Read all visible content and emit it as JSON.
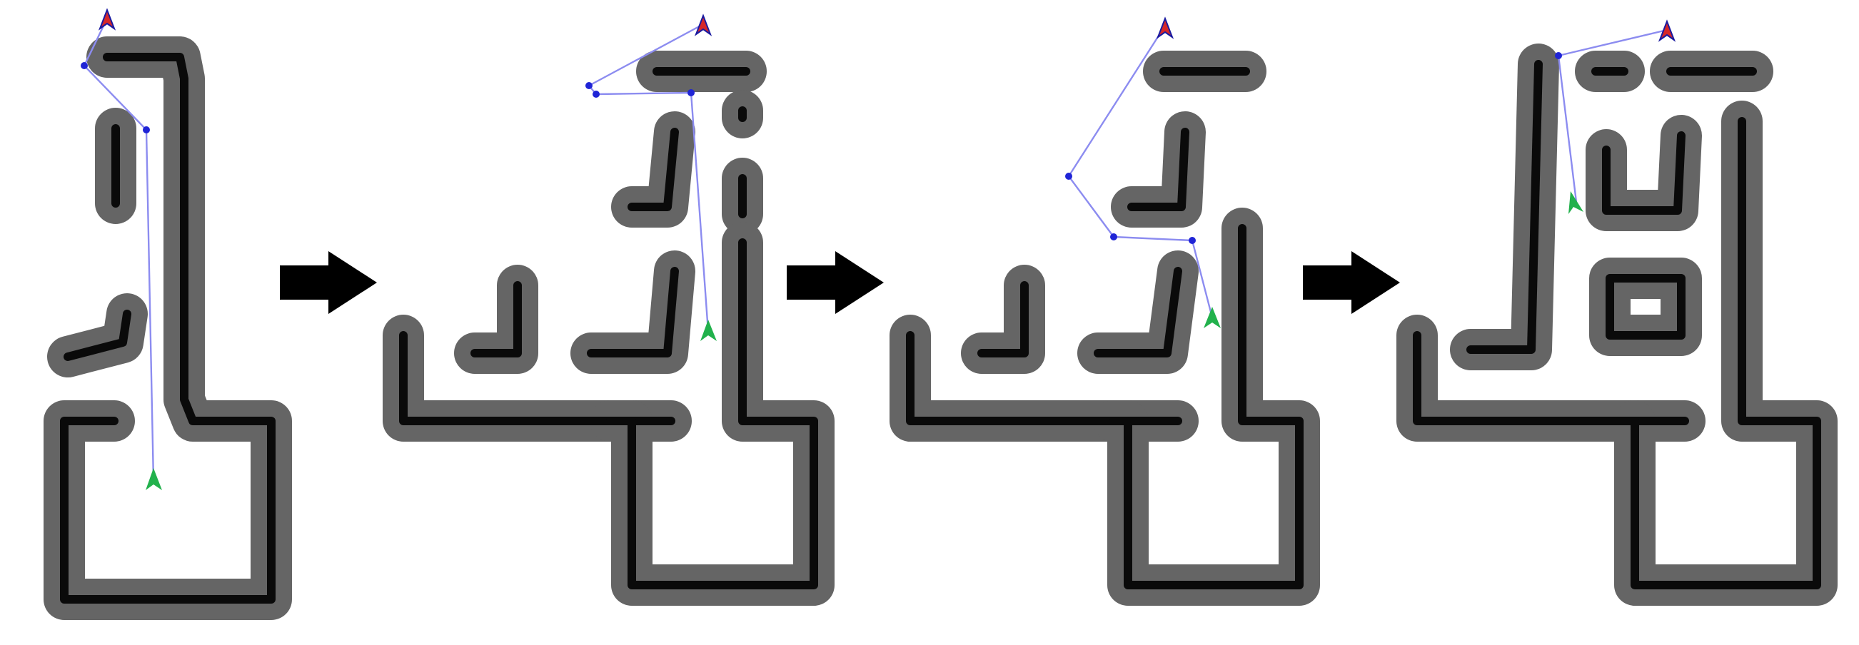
{
  "colors": {
    "background": "#ffffff",
    "inflated_obstacle": "#656565",
    "wall": "#0a0a0a",
    "planned_path": "#8c8cf0",
    "waypoint": "#1f24d6",
    "start_marker": "#22b14c",
    "goal_marker_fill": "#d62828",
    "goal_marker_outline": "#1a1aa0",
    "arrow": "#000000"
  },
  "icons": {
    "start": "green-arrowhead-icon",
    "goal": "red-arrowhead-icon",
    "transition": "right-arrow-icon"
  },
  "panels": [
    {
      "name": "map-stage-1"
    },
    {
      "name": "map-stage-2"
    },
    {
      "name": "map-stage-3"
    },
    {
      "name": "map-stage-4"
    }
  ]
}
